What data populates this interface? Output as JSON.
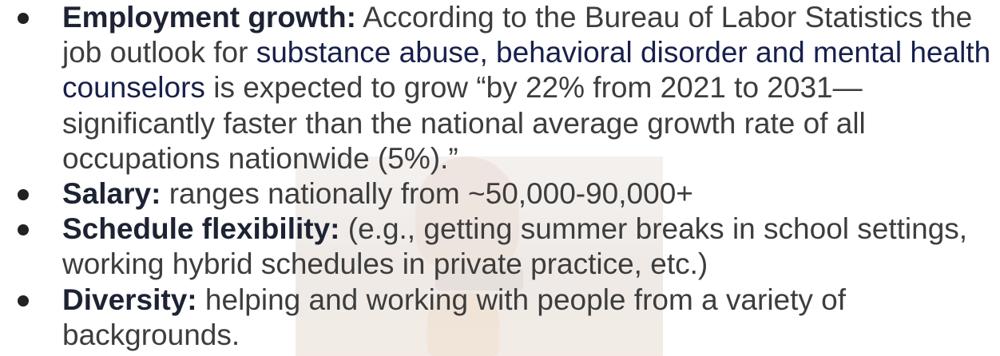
{
  "items": [
    {
      "label": "Employment growth:",
      "text": "According to the Bureau of Labor Statistics the job outlook for",
      "link": "substance abuse, behavioral disorder and mental health counselors",
      "text_after": "is expected to grow “by 22% from 2021 to 2031—significantly faster than the national average growth rate of all occupations nationwide (5%).”"
    },
    {
      "label": "Salary:",
      "text": "ranges nationally from ~50,000-90,000+"
    },
    {
      "label": "Schedule flexibility:",
      "text": "(e.g., getting summer breaks in school settings, working hybrid schedules in private practice, etc.)"
    },
    {
      "label": "Diversity:",
      "text": "helping and working with people from a variety of backgrounds."
    }
  ]
}
